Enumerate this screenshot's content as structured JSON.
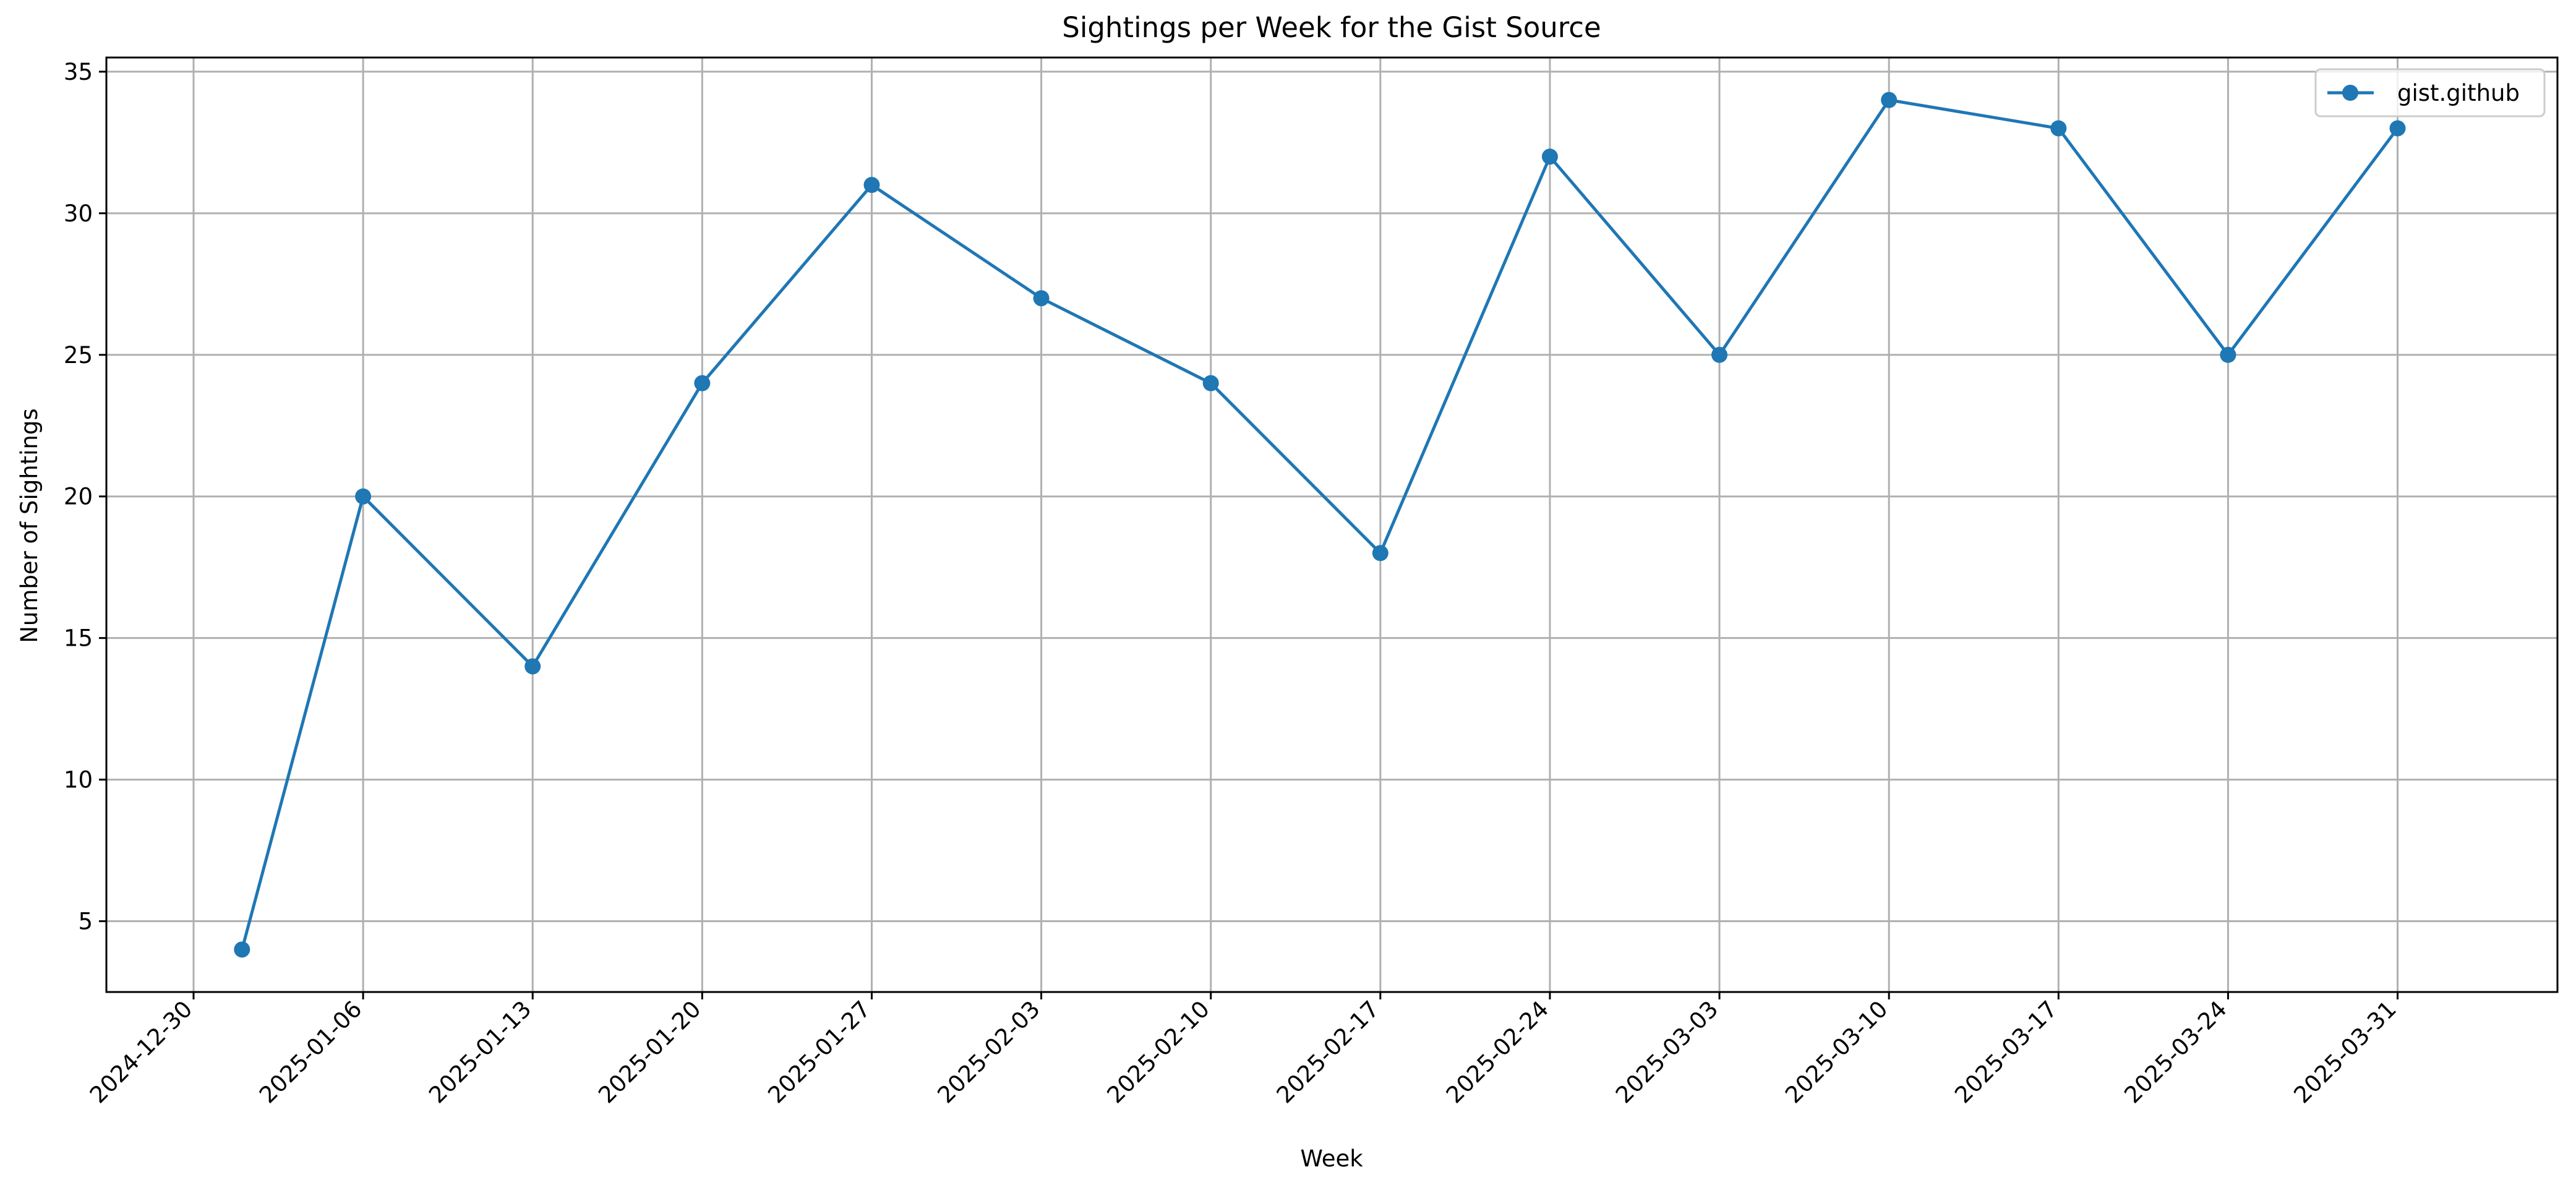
{
  "chart_data": {
    "type": "line",
    "title": "Sightings per Week for the Gist Source",
    "xlabel": "Week",
    "ylabel": "Number of Sightings",
    "x_ticks": [
      "2024-12-30",
      "2025-01-06",
      "2025-01-13",
      "2025-01-20",
      "2025-01-27",
      "2025-02-03",
      "2025-02-10",
      "2025-02-17",
      "2025-02-24",
      "2025-03-03",
      "2025-03-10",
      "2025-03-17",
      "2025-03-24",
      "2025-03-31"
    ],
    "y_ticks": [
      5,
      10,
      15,
      20,
      25,
      30,
      35
    ],
    "ylim": [
      2.5,
      35.5
    ],
    "xlim_days": [
      -3.6,
      97.6
    ],
    "grid": true,
    "legend_position": "top-right",
    "series": [
      {
        "name": "gist.github",
        "color": "#1f77b4",
        "x_days": [
          2,
          7,
          14,
          21,
          28,
          35,
          42,
          49,
          56,
          63,
          70,
          77,
          84,
          91
        ],
        "values": [
          4,
          20,
          14,
          24,
          31,
          27,
          24,
          18,
          32,
          25,
          34,
          33,
          25,
          33
        ]
      }
    ]
  }
}
